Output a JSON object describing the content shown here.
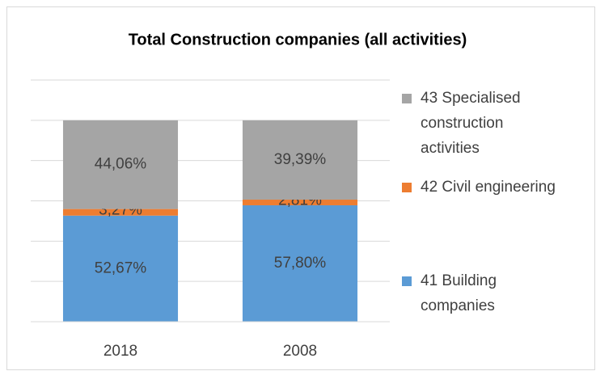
{
  "chart_data": {
    "type": "stacked_bar",
    "title": "Total Construction companies (all activities)",
    "categories": [
      "2018",
      "2008"
    ],
    "series": [
      {
        "name": "41 Building companies",
        "color": "#5b9bd5",
        "values": [
          52.67,
          57.8
        ],
        "value_labels": [
          "52,67%",
          "57,80%"
        ]
      },
      {
        "name": "42 Civil engineering",
        "color": "#ed7d31",
        "values": [
          3.27,
          2.81
        ],
        "value_labels": [
          "3,27%",
          "2,81%"
        ]
      },
      {
        "name": "43 Specialised construction activities",
        "color": "#a5a5a5",
        "values": [
          44.06,
          39.39
        ],
        "value_labels": [
          "44,06%",
          "39,39%"
        ]
      }
    ],
    "ylim": [
      0,
      120
    ],
    "yticks": [
      0,
      20,
      40,
      60,
      80,
      100,
      120
    ],
    "grid": true,
    "legend": "right"
  }
}
